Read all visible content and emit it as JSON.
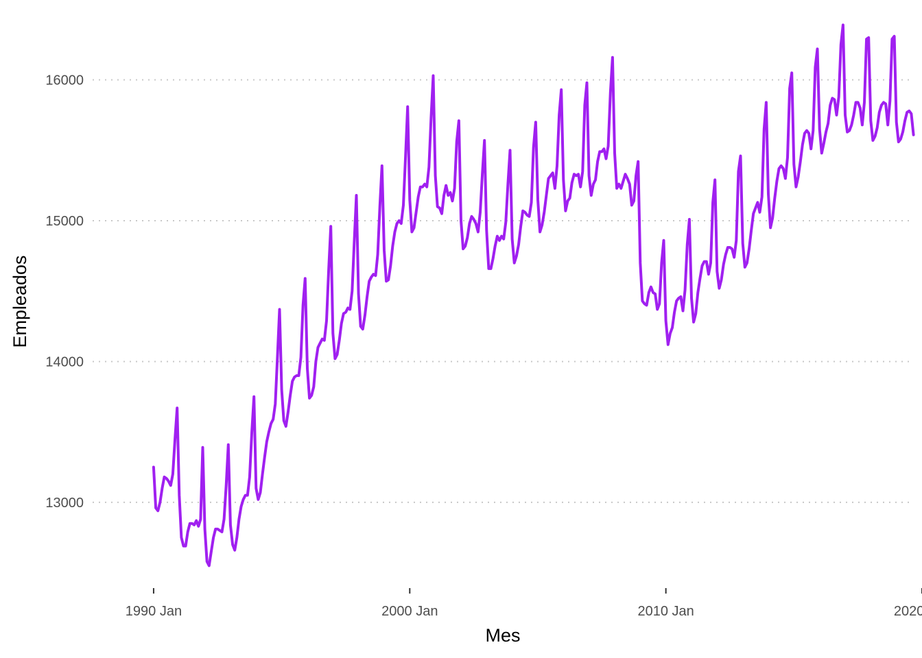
{
  "chart_data": {
    "type": "line",
    "title": "",
    "xlabel": "Mes",
    "ylabel": "Empleados",
    "x_ticks": [
      {
        "year": 1990,
        "label": "1990 Jan"
      },
      {
        "year": 2000,
        "label": "2000 Jan"
      },
      {
        "year": 2010,
        "label": "2010 Jan"
      },
      {
        "year": 2020,
        "label": "2020 Jan"
      }
    ],
    "y_ticks": [
      13000,
      14000,
      15000,
      16000
    ],
    "xlim": [
      1987.35,
      2020.0
    ],
    "ylim": [
      12430,
      16470
    ],
    "grid": "horizontal dotted",
    "legend": "none",
    "line_color": "#a020f0",
    "series": [
      {
        "start": "1990 Jan",
        "frequency": "monthly",
        "values": [
          13250,
          12960,
          12940,
          13000,
          13100,
          13180,
          13170,
          13150,
          13120,
          13200,
          13450,
          13670,
          13050,
          12750,
          12690,
          12690,
          12790,
          12850,
          12850,
          12840,
          12870,
          12830,
          12880,
          13390,
          12810,
          12580,
          12550,
          12650,
          12750,
          12810,
          12810,
          12800,
          12790,
          12880,
          13120,
          13410,
          12840,
          12700,
          12660,
          12750,
          12880,
          12970,
          13020,
          13050,
          13050,
          13180,
          13500,
          13750,
          13100,
          13020,
          13070,
          13200,
          13320,
          13430,
          13500,
          13560,
          13590,
          13700,
          14030,
          14370,
          13800,
          13580,
          13540,
          13640,
          13760,
          13860,
          13890,
          13900,
          13900,
          14030,
          14400,
          14590,
          13950,
          13740,
          13760,
          13820,
          14000,
          14100,
          14130,
          14160,
          14150,
          14290,
          14650,
          14960,
          14200,
          14020,
          14050,
          14150,
          14270,
          14340,
          14350,
          14380,
          14370,
          14500,
          14850,
          15180,
          14480,
          14250,
          14230,
          14330,
          14460,
          14570,
          14600,
          14620,
          14610,
          14760,
          15100,
          15390,
          14790,
          14570,
          14580,
          14680,
          14820,
          14920,
          14980,
          15000,
          14980,
          15110,
          15450,
          15810,
          15150,
          14920,
          14950,
          15060,
          15170,
          15240,
          15240,
          15260,
          15240,
          15380,
          15730,
          16030,
          15320,
          15100,
          15090,
          15050,
          15180,
          15250,
          15180,
          15200,
          15140,
          15230,
          15560,
          15710,
          15000,
          14800,
          14820,
          14880,
          14980,
          15030,
          15010,
          14980,
          14920,
          15060,
          15330,
          15570,
          14930,
          14660,
          14660,
          14730,
          14820,
          14890,
          14860,
          14890,
          14870,
          14990,
          15260,
          15500,
          14870,
          14700,
          14750,
          14830,
          14960,
          15070,
          15060,
          15040,
          15030,
          15130,
          15520,
          15700,
          15150,
          14920,
          14970,
          15060,
          15180,
          15300,
          15320,
          15340,
          15230,
          15390,
          15750,
          15930,
          15290,
          15070,
          15140,
          15160,
          15270,
          15330,
          15320,
          15330,
          15240,
          15350,
          15820,
          15980,
          15320,
          15180,
          15260,
          15290,
          15420,
          15490,
          15490,
          15510,
          15440,
          15530,
          15910,
          16160,
          15480,
          15230,
          15260,
          15230,
          15280,
          15330,
          15300,
          15260,
          15110,
          15140,
          15320,
          15420,
          14700,
          14430,
          14410,
          14400,
          14490,
          14530,
          14490,
          14480,
          14370,
          14410,
          14700,
          14860,
          14290,
          14120,
          14200,
          14240,
          14350,
          14430,
          14450,
          14460,
          14360,
          14510,
          14830,
          15010,
          14450,
          14280,
          14340,
          14490,
          14590,
          14680,
          14710,
          14710,
          14620,
          14700,
          15130,
          15290,
          14640,
          14520,
          14580,
          14690,
          14760,
          14810,
          14810,
          14800,
          14740,
          14860,
          15350,
          15460,
          14840,
          14670,
          14700,
          14800,
          14930,
          15050,
          15090,
          15130,
          15060,
          15170,
          15650,
          15840,
          15190,
          14950,
          15020,
          15160,
          15280,
          15370,
          15390,
          15370,
          15300,
          15450,
          15940,
          16050,
          15400,
          15240,
          15310,
          15420,
          15540,
          15620,
          15640,
          15620,
          15510,
          15640,
          16090,
          16220,
          15650,
          15480,
          15550,
          15630,
          15690,
          15820,
          15870,
          15860,
          15750,
          15880,
          16250,
          16390,
          15750,
          15630,
          15640,
          15680,
          15750,
          15840,
          15840,
          15800,
          15680,
          15840,
          16290,
          16300,
          15710,
          15570,
          15600,
          15660,
          15770,
          15820,
          15840,
          15830,
          15680,
          15850,
          16290,
          16310,
          15700,
          15560,
          15580,
          15630,
          15710,
          15770,
          15780,
          15760,
          15610
        ]
      }
    ]
  }
}
